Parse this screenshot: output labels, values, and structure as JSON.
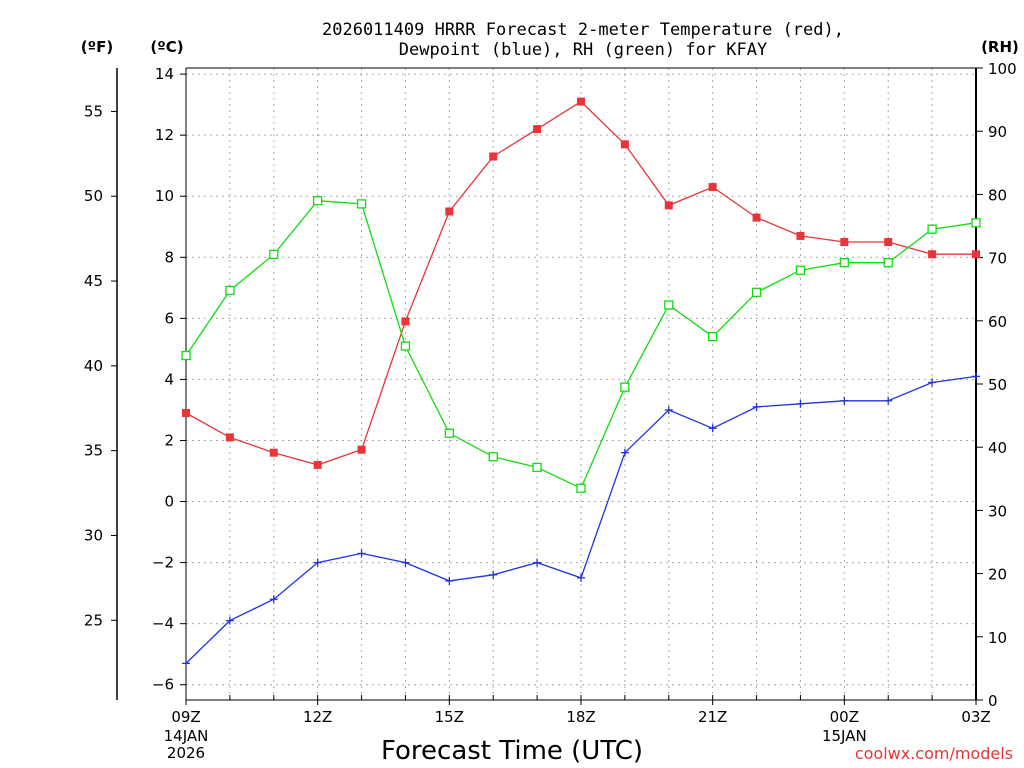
{
  "chart_data": {
    "type": "line",
    "title_line1": "2026011409 HRRR Forecast 2-meter Temperature (red),",
    "title_line2": "Dewpoint (blue), RH (green) for KFAY",
    "unit_left_f": "(ºF)",
    "unit_left_c": "(ºC)",
    "unit_right": "(RH)",
    "xlabel": "Forecast Time (UTC)",
    "credit": "coolwx.com/models",
    "x_date_labels": [
      {
        "hour": 0,
        "lines": [
          "14JAN",
          "2026"
        ]
      },
      {
        "hour": 15,
        "lines": [
          "15JAN"
        ]
      }
    ],
    "xlim": [
      0,
      18
    ],
    "x_ticks": [
      {
        "hour": 0,
        "label": "09Z"
      },
      {
        "hour": 3,
        "label": "12Z"
      },
      {
        "hour": 6,
        "label": "15Z"
      },
      {
        "hour": 9,
        "label": "18Z"
      },
      {
        "hour": 12,
        "label": "21Z"
      },
      {
        "hour": 15,
        "label": "00Z"
      },
      {
        "hour": 18,
        "label": "03Z"
      }
    ],
    "ylim_c": [
      -6.5,
      14.2
    ],
    "y_ticks_c": [
      -6,
      -4,
      -2,
      0,
      2,
      4,
      6,
      8,
      10,
      12,
      14
    ],
    "y_ticks_f": [
      25,
      30,
      35,
      40,
      45,
      50,
      55
    ],
    "ylim_rh": [
      0,
      100
    ],
    "y_ticks_rh": [
      0,
      10,
      20,
      30,
      40,
      50,
      60,
      70,
      80,
      90,
      100
    ],
    "series": [
      {
        "name": "Temperature",
        "axis": "c",
        "color": "#e8353a",
        "marker": "filled-square",
        "values": [
          2.9,
          2.1,
          1.6,
          1.2,
          1.7,
          5.9,
          9.5,
          11.3,
          12.2,
          13.1,
          11.7,
          9.7,
          10.3,
          9.3,
          8.7,
          8.5,
          8.5,
          8.1,
          8.1
        ]
      },
      {
        "name": "Dewpoint",
        "axis": "c",
        "color": "#2233dd",
        "marker": "plus",
        "values": [
          -5.3,
          -3.9,
          -3.2,
          -2.0,
          -1.7,
          -2.0,
          -2.6,
          -2.4,
          -2.0,
          -2.5,
          1.6,
          3.0,
          2.4,
          3.1,
          3.2,
          3.3,
          3.3,
          3.9,
          4.1
        ]
      },
      {
        "name": "RH",
        "axis": "rh",
        "color": "#11dd11",
        "marker": "open-square",
        "values": [
          54.5,
          64.8,
          70.5,
          79.0,
          78.5,
          56.0,
          42.2,
          38.5,
          36.8,
          33.5,
          49.5,
          62.5,
          57.5,
          64.5,
          68.0,
          69.2,
          69.2,
          74.5,
          75.5
        ]
      }
    ]
  }
}
